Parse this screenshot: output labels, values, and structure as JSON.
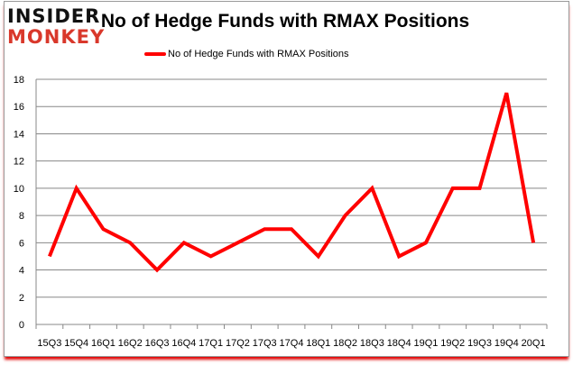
{
  "logo": {
    "line1": "INSIDER",
    "line2": "MONKEY"
  },
  "chart_data": {
    "type": "line",
    "title": "No of Hedge Funds with RMAX Positions",
    "xlabel": "",
    "ylabel": "",
    "categories": [
      "15Q3",
      "15Q4",
      "16Q1",
      "16Q2",
      "16Q3",
      "16Q4",
      "17Q1",
      "17Q2",
      "17Q3",
      "17Q4",
      "18Q1",
      "18Q2",
      "18Q3",
      "18Q4",
      "19Q1",
      "19Q2",
      "19Q3",
      "19Q4",
      "20Q1"
    ],
    "series": [
      {
        "name": "No of Hedge Funds with RMAX Positions",
        "values": [
          5,
          10,
          7,
          6,
          4,
          6,
          5,
          6,
          7,
          7,
          5,
          8,
          10,
          5,
          6,
          10,
          10,
          17,
          6
        ],
        "color": "#ff0000"
      }
    ],
    "ylim": [
      0,
      18
    ],
    "yticks": [
      0,
      2,
      4,
      6,
      8,
      10,
      12,
      14,
      16,
      18
    ],
    "grid": true,
    "legend": "top"
  }
}
